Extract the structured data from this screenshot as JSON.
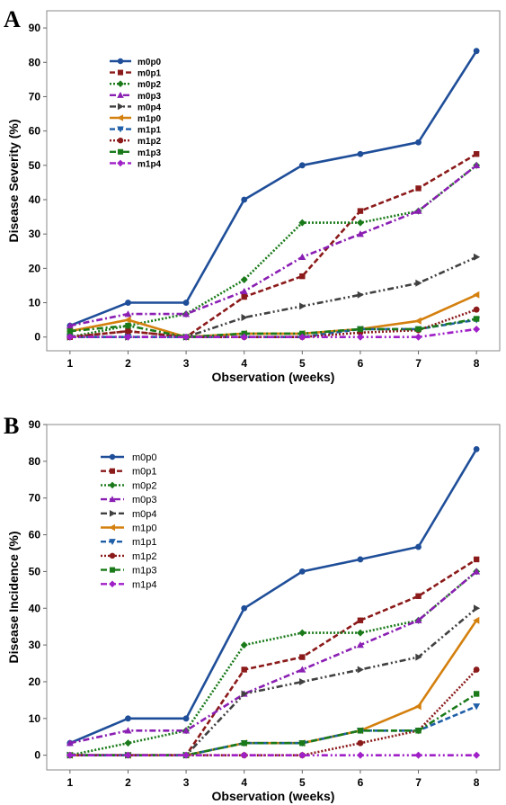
{
  "chart_data": [
    {
      "panel_label": "A",
      "type": "line",
      "xlabel": "Observation (weeks)",
      "ylabel": "Disease Severity (%)",
      "x": [
        1,
        2,
        3,
        4,
        5,
        6,
        7,
        8
      ],
      "xlim": [
        0.6,
        8.4
      ],
      "ylim": [
        -4,
        95
      ],
      "yticks": [
        0,
        10,
        20,
        30,
        40,
        50,
        60,
        70,
        80,
        90
      ],
      "grid": false,
      "legend_position": "upper-left",
      "series": [
        {
          "name": "m0p0",
          "color": "#1f4e99",
          "marker": "circle",
          "dash": "solid",
          "values": [
            3.3,
            10,
            10,
            40,
            50,
            53.3,
            56.7,
            83.3
          ]
        },
        {
          "name": "m0p1",
          "color": "#8b1a1a",
          "marker": "square",
          "dash": "dashed",
          "values": [
            0,
            1.7,
            0,
            11.7,
            17.7,
            36.7,
            43.3,
            53.3
          ]
        },
        {
          "name": "m0p2",
          "color": "#1a7a1a",
          "marker": "diamond",
          "dash": "dotted",
          "values": [
            0,
            3.3,
            6.7,
            16.7,
            33.3,
            33.3,
            36.7,
            50
          ]
        },
        {
          "name": "m0p3",
          "color": "#8a1fb3",
          "marker": "triangle-up",
          "dash": "dash-dot",
          "values": [
            3.3,
            6.7,
            6.7,
            13.3,
            23.3,
            30,
            36.7,
            50
          ]
        },
        {
          "name": "m0p4",
          "color": "#404040",
          "marker": "triangle-right",
          "dash": "dash-dot-dot",
          "values": [
            0,
            0,
            0,
            5.7,
            9,
            12.3,
            15.7,
            23.3
          ]
        },
        {
          "name": "m1p0",
          "color": "#d4800e",
          "marker": "triangle-left",
          "dash": "solid",
          "values": [
            1.7,
            5,
            0,
            1,
            1,
            2.3,
            4.7,
            12.3
          ]
        },
        {
          "name": "m1p1",
          "color": "#1f5fa8",
          "marker": "triangle-down",
          "dash": "dashed",
          "values": [
            0,
            0,
            0,
            0,
            0,
            2.3,
            2.3,
            5
          ]
        },
        {
          "name": "m1p2",
          "color": "#8b1a1a",
          "marker": "circle",
          "dash": "dotted",
          "values": [
            0,
            1.7,
            0,
            0,
            0,
            1.3,
            2,
            8
          ]
        },
        {
          "name": "m1p3",
          "color": "#1a7a1a",
          "marker": "square",
          "dash": "dash-dot",
          "values": [
            1.7,
            3.3,
            0,
            1,
            1,
            2.3,
            2.3,
            5.3
          ]
        },
        {
          "name": "m1p4",
          "color": "#a020c8",
          "marker": "diamond",
          "dash": "dash-dot-dot",
          "values": [
            0,
            0,
            0,
            0,
            0,
            0,
            0,
            2.3
          ]
        }
      ]
    },
    {
      "panel_label": "B",
      "type": "line",
      "xlabel": "Observation (weeks)",
      "ylabel": "Disease Incidence (%)",
      "x": [
        1,
        2,
        3,
        4,
        5,
        6,
        7,
        8
      ],
      "xlim": [
        0.6,
        8.4
      ],
      "ylim": [
        -4,
        90
      ],
      "yticks": [
        0,
        10,
        20,
        30,
        40,
        50,
        60,
        70,
        80,
        90
      ],
      "grid": false,
      "legend_position": "upper-left",
      "series": [
        {
          "name": "m0p0",
          "color": "#1f4e99",
          "marker": "circle",
          "dash": "solid",
          "values": [
            3.3,
            10,
            10,
            40,
            50,
            53.3,
            56.7,
            83.3
          ]
        },
        {
          "name": "m0p1",
          "color": "#8b1a1a",
          "marker": "square",
          "dash": "dashed",
          "values": [
            0,
            0,
            0,
            23.3,
            26.7,
            36.7,
            43.3,
            53.3
          ]
        },
        {
          "name": "m0p2",
          "color": "#1a7a1a",
          "marker": "diamond",
          "dash": "dotted",
          "values": [
            0,
            3.3,
            6.7,
            30,
            33.3,
            33.3,
            36.7,
            50
          ]
        },
        {
          "name": "m0p3",
          "color": "#8a1fb3",
          "marker": "triangle-up",
          "dash": "dash-dot",
          "values": [
            3.3,
            6.7,
            6.7,
            16.7,
            23.3,
            30,
            36.7,
            50
          ]
        },
        {
          "name": "m0p4",
          "color": "#404040",
          "marker": "triangle-right",
          "dash": "dash-dot-dot",
          "values": [
            0,
            0,
            0,
            16.7,
            20,
            23.3,
            26.7,
            40
          ]
        },
        {
          "name": "m1p0",
          "color": "#d4800e",
          "marker": "triangle-left",
          "dash": "solid",
          "values": [
            0,
            0,
            0,
            3.3,
            3.3,
            6.7,
            13.3,
            36.7
          ]
        },
        {
          "name": "m1p1",
          "color": "#1f5fa8",
          "marker": "triangle-down",
          "dash": "dashed",
          "values": [
            0,
            0,
            0,
            3.3,
            3.3,
            6.7,
            6.7,
            13.3
          ]
        },
        {
          "name": "m1p2",
          "color": "#8b1a1a",
          "marker": "circle",
          "dash": "dotted",
          "values": [
            0,
            0,
            0,
            0,
            0,
            3.3,
            6.7,
            23.3
          ]
        },
        {
          "name": "m1p3",
          "color": "#1a7a1a",
          "marker": "square",
          "dash": "dash-dot",
          "values": [
            0,
            0,
            0,
            3.3,
            3.3,
            6.7,
            6.7,
            16.7
          ]
        },
        {
          "name": "m1p4",
          "color": "#a020c8",
          "marker": "diamond",
          "dash": "dash-dot-dot",
          "values": [
            0,
            0,
            0,
            0,
            0,
            0,
            0,
            0
          ]
        }
      ]
    }
  ]
}
